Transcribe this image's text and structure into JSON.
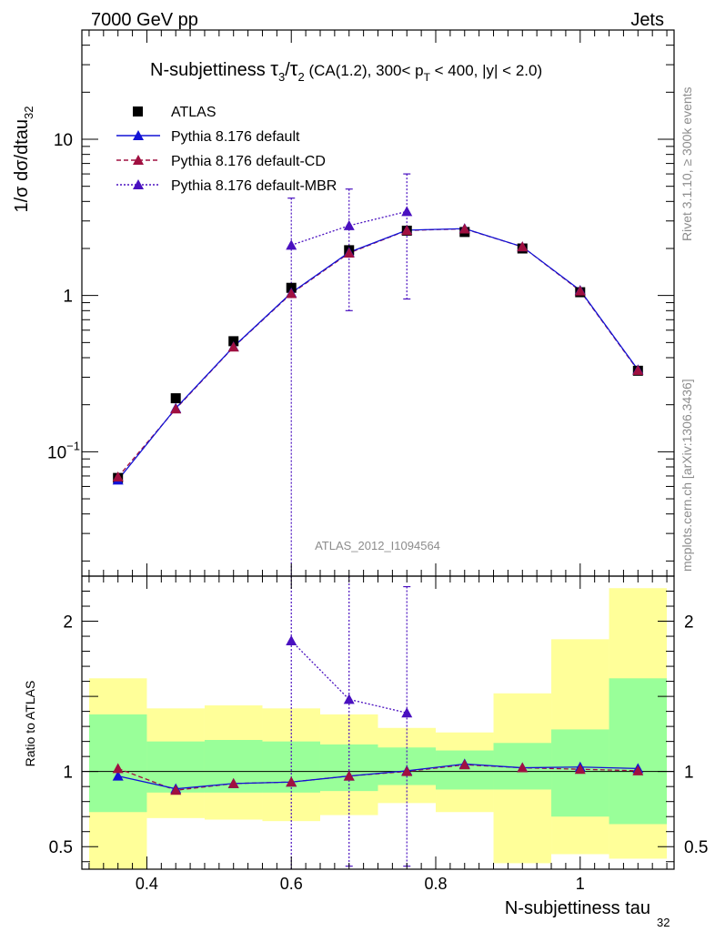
{
  "header": {
    "left": "7000 GeV pp",
    "right": "Jets"
  },
  "side_texts": {
    "rivet": "Rivet 3.1.10, ≥ 300k events",
    "mcplots": "mcplots.cern.ch [arXiv:1306.3436]"
  },
  "chart_data": {
    "type": "scatter",
    "title": "N-subjettiness τ3/τ2 (CA(1.2), 300< pT < 400, |y| < 2.0)",
    "title_parts": {
      "prefix": "N-subjettiness ",
      "tau": "τ",
      "sub3": "3",
      "slash": "/",
      "sub2": "2",
      "rest1": " (CA(1.2), 300< p",
      "subT": "T",
      "rest2": " < 400, |y| < 2.0)"
    },
    "analysis_label": "ATLAS_2012_I1094564",
    "xlabel": "N-subjettiness tau",
    "xlabel_sub": "32",
    "ylabel": "1/σ dσ/dtau",
    "ylabel_sub": "32",
    "ratio_ylabel": "Ratio to ATLAS",
    "xlim": [
      0.31,
      1.13
    ],
    "ylim": [
      0.016,
      50
    ],
    "yscale": "log",
    "ratio_ylim": [
      0.35,
      2.3
    ],
    "x_ticks": [
      "0.4",
      "0.6",
      "0.8",
      "1"
    ],
    "x_tick_values": [
      0.4,
      0.6,
      0.8,
      1.0
    ],
    "y_ticks": [
      {
        "value": 0.1,
        "base": "10",
        "exp": "−1"
      },
      {
        "value": 1,
        "base": "1",
        "exp": ""
      },
      {
        "value": 10,
        "base": "10",
        "exp": ""
      }
    ],
    "ratio_ticks": [
      "0.5",
      "1",
      "2"
    ],
    "ratio_tick_values": [
      0.5,
      1,
      2
    ],
    "bins": [
      0.32,
      0.4,
      0.48,
      0.56,
      0.64,
      0.72,
      0.8,
      0.88,
      0.96,
      1.04,
      1.12
    ],
    "x": [
      0.36,
      0.44,
      0.52,
      0.6,
      0.68,
      0.76,
      0.84,
      0.92,
      1.0,
      1.08
    ],
    "band_green": [
      [
        0.73,
        1.38
      ],
      [
        0.86,
        1.2
      ],
      [
        0.86,
        1.21
      ],
      [
        0.86,
        1.2
      ],
      [
        0.87,
        1.18
      ],
      [
        0.91,
        1.16
      ],
      [
        0.88,
        1.14
      ],
      [
        0.88,
        1.19
      ],
      [
        0.7,
        1.28
      ],
      [
        0.65,
        1.62
      ]
    ],
    "band_yellow": [
      [
        0.3,
        1.62
      ],
      [
        0.69,
        1.42
      ],
      [
        0.68,
        1.44
      ],
      [
        0.67,
        1.42
      ],
      [
        0.71,
        1.38
      ],
      [
        0.79,
        1.29
      ],
      [
        0.73,
        1.26
      ],
      [
        0.39,
        1.52
      ],
      [
        0.45,
        1.88
      ],
      [
        0.42,
        2.22
      ]
    ],
    "legend": {
      "position": "top-left",
      "entries": [
        "ATLAS",
        "Pythia 8.176 default",
        "Pythia 8.176 default-CD",
        "Pythia 8.176 default-MBR"
      ]
    },
    "series": [
      {
        "name": "ATLAS",
        "color": "#000000",
        "marker": "square",
        "values": [
          0.068,
          0.22,
          0.51,
          1.12,
          1.95,
          2.6,
          2.55,
          2.0,
          1.05,
          0.33
        ]
      },
      {
        "name": "Pythia 8.176 default",
        "color": "#1212d6",
        "marker": "triangle",
        "line": "solid",
        "values": [
          0.066,
          0.19,
          0.47,
          1.04,
          1.89,
          2.62,
          2.68,
          2.05,
          1.08,
          0.335
        ],
        "ratio": [
          0.97,
          0.885,
          0.92,
          0.93,
          0.97,
          1.005,
          1.05,
          1.025,
          1.03,
          1.02
        ]
      },
      {
        "name": "Pythia 8.176 default-CD",
        "color": "#a01040",
        "marker": "triangle",
        "line": "dashed",
        "values": [
          0.069,
          0.188,
          0.468,
          1.03,
          1.87,
          2.61,
          2.67,
          2.05,
          1.07,
          0.332
        ],
        "ratio": [
          1.02,
          0.875,
          0.92,
          0.93,
          0.97,
          1.0,
          1.045,
          1.025,
          1.015,
          1.005
        ],
        "errors": [
          0.02,
          0.0,
          0.0,
          0.0,
          0.0,
          0.0,
          0.0,
          0.0,
          0.0,
          0.0
        ]
      },
      {
        "name": "Pythia 8.176 default-MBR",
        "color": "#4a10c0",
        "marker": "triangle",
        "line": "dotted",
        "x": [
          0.6,
          0.68,
          0.76
        ],
        "values": [
          2.1,
          2.8,
          3.45
        ],
        "ratio": [
          1.87,
          1.48,
          1.39
        ],
        "err_low": [
          0.001,
          0.8,
          0.95
        ],
        "err_high": [
          4.2,
          4.8,
          6.0
        ],
        "ratio_err_low": [
          0.35,
          0.37,
          0.37
        ],
        "ratio_err_high": [
          2.3,
          2.3,
          2.23
        ]
      }
    ]
  }
}
